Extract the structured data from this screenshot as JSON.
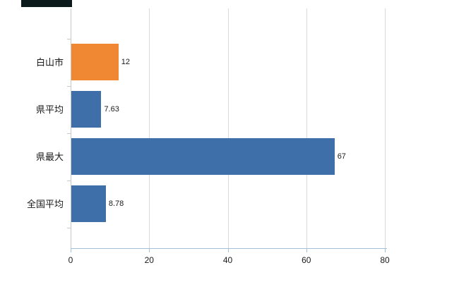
{
  "window": {
    "titlebar_fragment_color": "#0d1a1c"
  },
  "chart_data": {
    "type": "bar",
    "orientation": "horizontal",
    "title": "",
    "xlabel": "",
    "ylabel": "",
    "categories": [
      "白山市",
      "県平均",
      "県最大",
      "全国平均"
    ],
    "values": [
      12,
      7.63,
      67,
      8.78
    ],
    "value_labels": [
      "12",
      "7.63",
      "67",
      "8.78"
    ],
    "bar_colors": [
      "#EF8733",
      "#3E6FA8",
      "#3E6FA8",
      "#3E6FA8"
    ],
    "x_ticks": [
      0,
      20,
      40,
      60,
      80
    ],
    "x_tick_labels": [
      "0",
      "20",
      "40",
      "60",
      "80"
    ],
    "xlim": [
      0,
      80
    ],
    "grid": true,
    "legend": "none",
    "colors": {
      "highlight_bar": "#EF8733",
      "default_bar": "#3E6FA8",
      "gridline": "#d9d9d9",
      "axis_line": "#a3c0da"
    }
  }
}
